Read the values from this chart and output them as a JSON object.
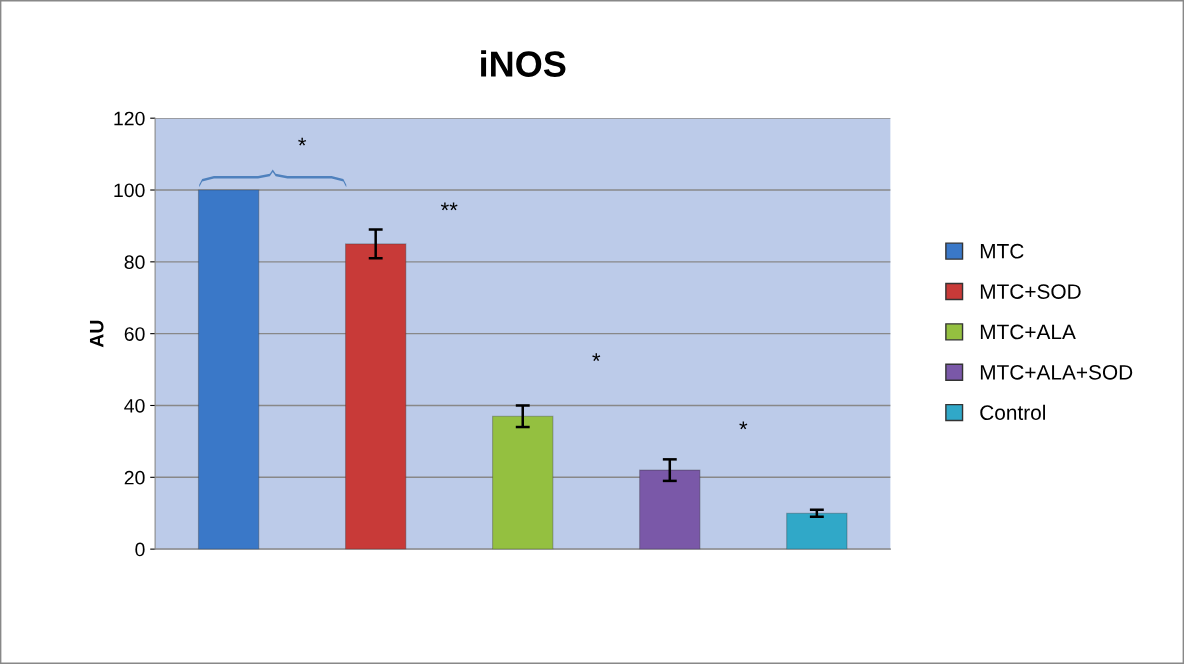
{
  "chart_data": {
    "type": "bar",
    "title": "iNOS",
    "ylabel": "AU",
    "categories": [
      null
    ],
    "series": [
      {
        "name": "MTC",
        "color": "#3a78c8",
        "values": [
          100
        ],
        "errors": [
          null
        ]
      },
      {
        "name": "MTC+SOD",
        "color": "#c83a38",
        "values": [
          85
        ],
        "errors": [
          4
        ]
      },
      {
        "name": "MTC+ALA",
        "color": "#94c040",
        "values": [
          37
        ],
        "errors": [
          3
        ]
      },
      {
        "name": "MTC+ALA+SOD",
        "color": "#7a58a8",
        "values": [
          22
        ],
        "errors": [
          3
        ]
      },
      {
        "name": "Control",
        "color": "#30a8c8",
        "values": [
          10
        ],
        "errors": [
          1
        ]
      }
    ],
    "annotations": [
      "*",
      "**",
      "*",
      "*"
    ],
    "ylim": [
      0,
      120
    ],
    "yticks": [
      0,
      20,
      40,
      60,
      80,
      100,
      120
    ],
    "grid": "y",
    "legend": "right"
  }
}
